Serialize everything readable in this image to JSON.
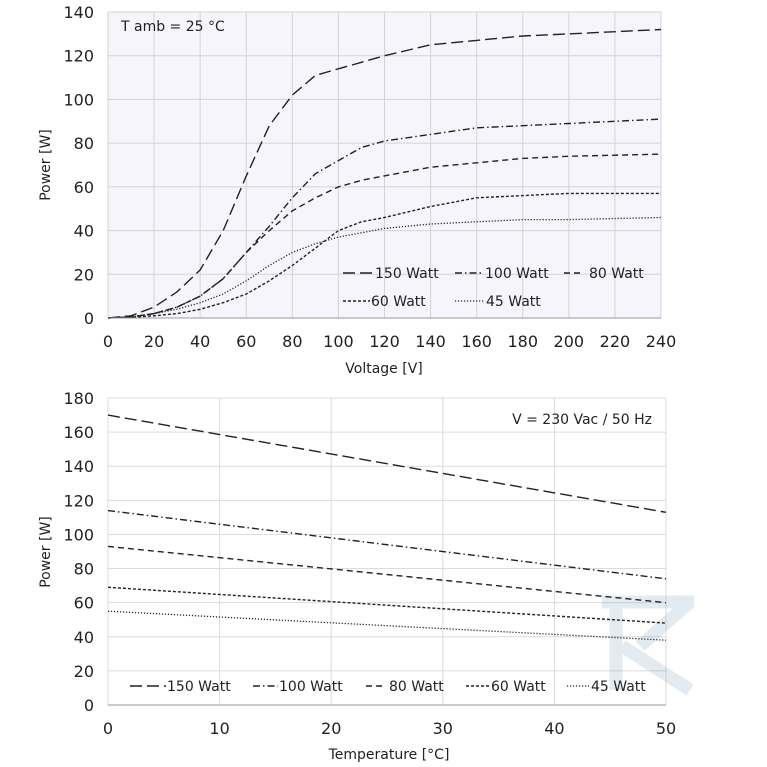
{
  "chart_data": [
    {
      "type": "line",
      "annotation": "T amb = 25 °C",
      "xlabel": "Voltage  [V]",
      "ylabel": "Power [W]",
      "xlim": [
        0,
        240
      ],
      "ylim": [
        0,
        140
      ],
      "xticks": [
        "0",
        "20",
        "40",
        "60",
        "80",
        "100",
        "120",
        "140",
        "160",
        "180",
        "200",
        "220",
        "240"
      ],
      "yticks": [
        "0",
        "20",
        "40",
        "60",
        "80",
        "100",
        "120",
        "140"
      ],
      "grid": true,
      "legend_position": "bottom-right",
      "background": "#f6f5fb",
      "series": [
        {
          "name": "150 Watt",
          "style": "long-dash",
          "color": "#222222",
          "x": [
            0,
            10,
            20,
            30,
            40,
            50,
            60,
            70,
            80,
            90,
            100,
            110,
            120,
            140,
            160,
            180,
            200,
            240
          ],
          "y": [
            0,
            1,
            5,
            12,
            22,
            40,
            65,
            88,
            102,
            111,
            114,
            117,
            120,
            125,
            127,
            129,
            130,
            132
          ]
        },
        {
          "name": "100 Watt",
          "style": "dash-dot",
          "color": "#222222",
          "x": [
            0,
            10,
            20,
            30,
            40,
            50,
            60,
            70,
            80,
            90,
            100,
            110,
            120,
            140,
            160,
            180,
            200,
            240
          ],
          "y": [
            0,
            0.5,
            2,
            5,
            10,
            18,
            30,
            42,
            55,
            66,
            72,
            78,
            81,
            84,
            87,
            88,
            89,
            91
          ]
        },
        {
          "name": "80 Watt",
          "style": "dash",
          "color": "#222222",
          "x": [
            0,
            10,
            20,
            30,
            40,
            50,
            60,
            70,
            80,
            90,
            100,
            110,
            120,
            140,
            160,
            180,
            200,
            240
          ],
          "y": [
            0,
            0.5,
            2,
            5,
            10,
            18,
            30,
            40,
            49,
            55,
            60,
            63,
            65,
            69,
            71,
            73,
            74,
            75
          ]
        },
        {
          "name": "60 Watt",
          "style": "short-dash",
          "color": "#222222",
          "x": [
            0,
            10,
            20,
            30,
            40,
            50,
            60,
            70,
            80,
            90,
            100,
            110,
            120,
            140,
            160,
            180,
            200,
            240
          ],
          "y": [
            0,
            0.3,
            1,
            2,
            4,
            7,
            11,
            17,
            24,
            32,
            40,
            44,
            46,
            51,
            55,
            56,
            57,
            57
          ]
        },
        {
          "name": "45 Watt",
          "style": "dotted",
          "color": "#222222",
          "x": [
            0,
            10,
            20,
            30,
            40,
            50,
            60,
            70,
            80,
            90,
            100,
            110,
            120,
            140,
            160,
            180,
            200,
            240
          ],
          "y": [
            0,
            0.5,
            2,
            4,
            7,
            11,
            17,
            24,
            30,
            34,
            37,
            39,
            41,
            43,
            44,
            45,
            45,
            46
          ]
        }
      ]
    },
    {
      "type": "line",
      "annotation": "V = 230 Vac / 50 Hz",
      "xlabel": "Temperature [°C]",
      "ylabel": "Power [W]",
      "xlim": [
        0,
        50
      ],
      "ylim": [
        0,
        180
      ],
      "xticks": [
        "0",
        "10",
        "20",
        "30",
        "40",
        "50"
      ],
      "yticks": [
        "0",
        "20",
        "40",
        "60",
        "80",
        "100",
        "120",
        "140",
        "160",
        "180"
      ],
      "grid": true,
      "legend_position": "bottom",
      "background": "#ffffff",
      "series": [
        {
          "name": "150 Watt",
          "style": "long-dash",
          "color": "#222222",
          "x": [
            0,
            50
          ],
          "y": [
            170,
            113
          ]
        },
        {
          "name": "100 Watt",
          "style": "dash-dot",
          "color": "#222222",
          "x": [
            0,
            50
          ],
          "y": [
            114,
            74
          ]
        },
        {
          "name": "80 Watt",
          "style": "dash",
          "color": "#222222",
          "x": [
            0,
            50
          ],
          "y": [
            93,
            60
          ]
        },
        {
          "name": "60 Watt",
          "style": "short-dash",
          "color": "#222222",
          "x": [
            0,
            50
          ],
          "y": [
            69,
            48
          ]
        },
        {
          "name": "45 Watt",
          "style": "dotted",
          "color": "#222222",
          "x": [
            0,
            50
          ],
          "y": [
            55,
            38
          ]
        }
      ]
    }
  ]
}
